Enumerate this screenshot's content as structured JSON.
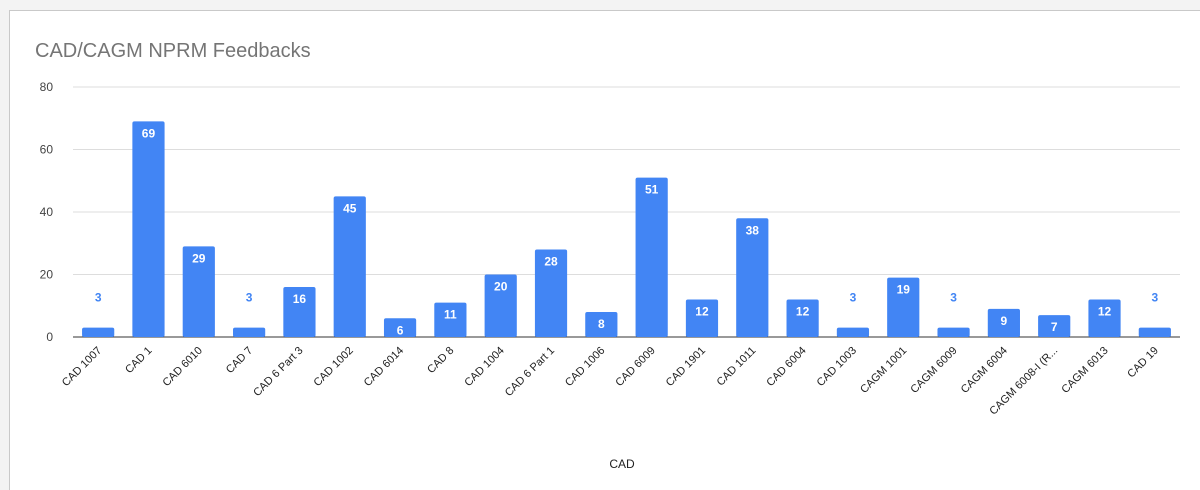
{
  "chart_data": {
    "type": "bar",
    "title": "CAD/CAGM NPRM Feedbacks",
    "xlabel": "CAD",
    "ylabel": "",
    "ylim": [
      0,
      80
    ],
    "yticks": [
      0,
      20,
      40,
      60,
      80
    ],
    "grid": true,
    "legend": "none",
    "bar_color": "#4285f4",
    "categories": [
      "CAD 1007",
      "CAD 1",
      "CAD 6010",
      "CAD 7",
      "CAD 6 Part 3",
      "CAD 1002",
      "CAD 6014",
      "CAD 8",
      "CAD 1004",
      "CAD 6 Part 1",
      "CAD 1006",
      "CAD 6009",
      "CAD 1901",
      "CAD 1011",
      "CAD 6004",
      "CAD 1003",
      "CAGM 1001",
      "CAGM 6009",
      "CAGM 6004",
      "CAGM 6008-I (R...",
      "CAGM 6013",
      "CAD 19"
    ],
    "values": [
      3,
      69,
      29,
      3,
      16,
      45,
      6,
      11,
      20,
      28,
      8,
      51,
      12,
      38,
      12,
      3,
      19,
      3,
      9,
      7,
      12,
      3
    ]
  }
}
